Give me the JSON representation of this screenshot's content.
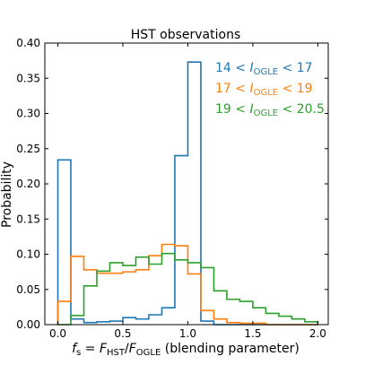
{
  "chart_data": {
    "type": "histogram",
    "title": "HST observations",
    "xlabel_parts": {
      "f": "f",
      "s": "s",
      "eq": " = ",
      "F1": "F",
      "HST": "HST",
      "slash": "/",
      "F2": "F",
      "OGLE": "OGLE",
      "suffix": " (blending parameter)"
    },
    "ylabel": "Probability",
    "xlim": [
      -0.1,
      2.08
    ],
    "ylim": [
      0,
      0.4
    ],
    "xticks": [
      "0.0",
      "0.5",
      "1.0",
      "1.5",
      "2.0"
    ],
    "xtick_values": [
      0,
      0.5,
      1.0,
      1.5,
      2.0
    ],
    "yticks": [
      "0.00",
      "0.05",
      "0.10",
      "0.15",
      "0.20",
      "0.25",
      "0.30",
      "0.35",
      "0.40"
    ],
    "ytick_values": [
      0,
      0.05,
      0.1,
      0.15,
      0.2,
      0.25,
      0.3,
      0.35,
      0.4
    ],
    "bin_edges": [
      0.0,
      0.1,
      0.2,
      0.3,
      0.4,
      0.5,
      0.6,
      0.7,
      0.8,
      0.9,
      1.0,
      1.1,
      1.2,
      1.3,
      1.4,
      1.5,
      1.6,
      1.7,
      1.8,
      1.9,
      2.0
    ],
    "series": [
      {
        "legend_parts": {
          "low": "14",
          "var": "I",
          "sub": "OGLE",
          "high": "17"
        },
        "color": "#1f77b4",
        "values": [
          0.234,
          0.008,
          0.003,
          0.004,
          0.005,
          0.01,
          0.008,
          0.014,
          0.024,
          0.24,
          0.373,
          0.005,
          0.0,
          0.0,
          0.0,
          0.0,
          0.0,
          0.0,
          0.0,
          0.0
        ]
      },
      {
        "legend_parts": {
          "low": "17",
          "var": "I",
          "sub": "OGLE",
          "high": "19"
        },
        "color": "#ff7f0e",
        "values": [
          0.033,
          0.097,
          0.078,
          0.073,
          0.073,
          0.075,
          0.078,
          0.098,
          0.114,
          0.112,
          0.072,
          0.02,
          0.008,
          0.003,
          0.002,
          0.002,
          0.0,
          0.0,
          0.0,
          0.0
        ]
      },
      {
        "legend_parts": {
          "low": "19",
          "var": "I",
          "sub": "OGLE",
          "high": "20.5"
        },
        "color": "#2ca02c",
        "values": [
          0.0,
          0.013,
          0.055,
          0.076,
          0.088,
          0.084,
          0.096,
          0.086,
          0.101,
          0.092,
          0.088,
          0.081,
          0.048,
          0.036,
          0.033,
          0.024,
          0.016,
          0.012,
          0.008,
          0.004
        ]
      }
    ]
  }
}
